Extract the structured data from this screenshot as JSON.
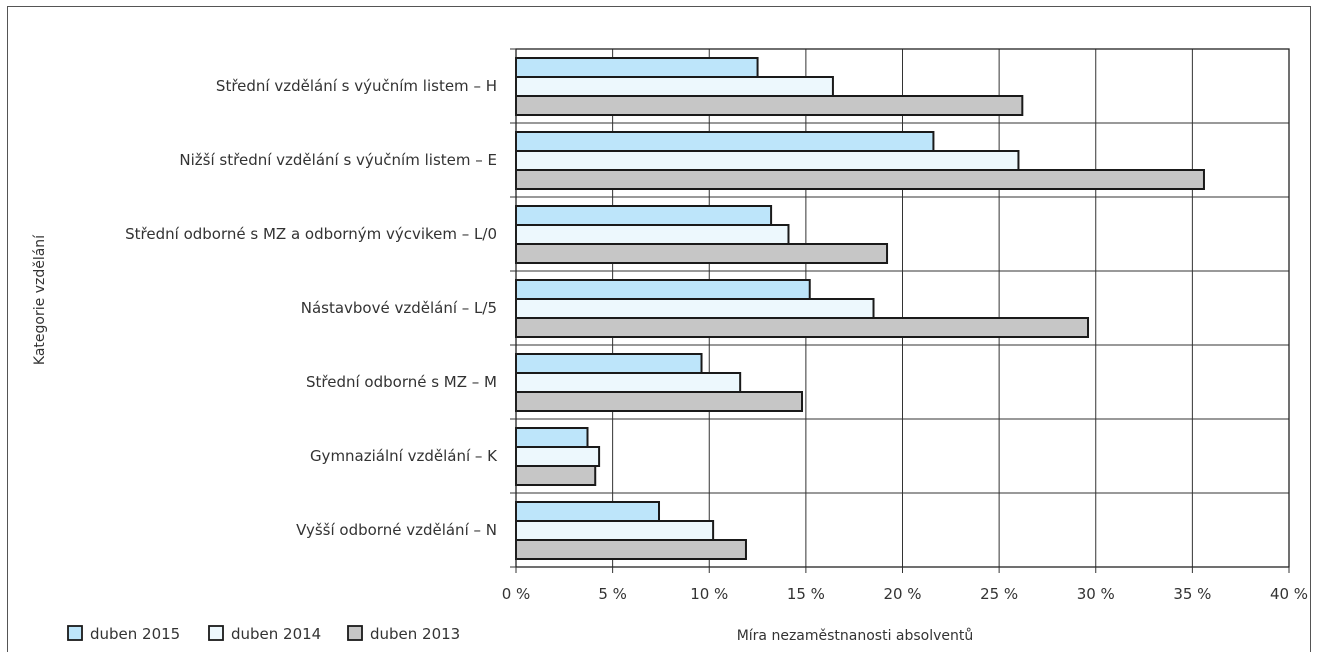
{
  "chart_data": {
    "type": "bar",
    "orientation": "horizontal",
    "title": "",
    "xlabel": "Míra nezaměstnanosti absolventů",
    "ylabel": "Kategorie vzdělání",
    "xlim": [
      0,
      40
    ],
    "x_ticks": [
      "0 %",
      "5 %",
      "10 %",
      "15 %",
      "20 %",
      "25 %",
      "30 %",
      "35 %",
      "40 %"
    ],
    "grid": true,
    "legend_position": "bottom-left",
    "categories": [
      "Střední vzdělání s výučním listem – H",
      "Nižší střední vzdělání s výučním listem – E",
      "Střední odborné s MZ a odborným výcvikem – L/0",
      "Nástavbové vzdělání – L/5",
      "Střední odborné s MZ – M",
      "Gymnaziální vzdělání – K",
      "Vyšší odborné vzdělání – N"
    ],
    "series": [
      {
        "name": "duben 2015",
        "color": "#bde5fa",
        "values": [
          12.5,
          21.6,
          13.2,
          15.2,
          9.6,
          3.7,
          7.4
        ]
      },
      {
        "name": "duben 2014",
        "color": "#edf8fd",
        "values": [
          16.4,
          26.0,
          14.1,
          18.5,
          11.6,
          4.3,
          10.2
        ]
      },
      {
        "name": "duben 2013",
        "color": "#c6c6c6",
        "values": [
          26.2,
          35.6,
          19.2,
          29.6,
          14.8,
          4.1,
          11.9
        ]
      }
    ]
  }
}
